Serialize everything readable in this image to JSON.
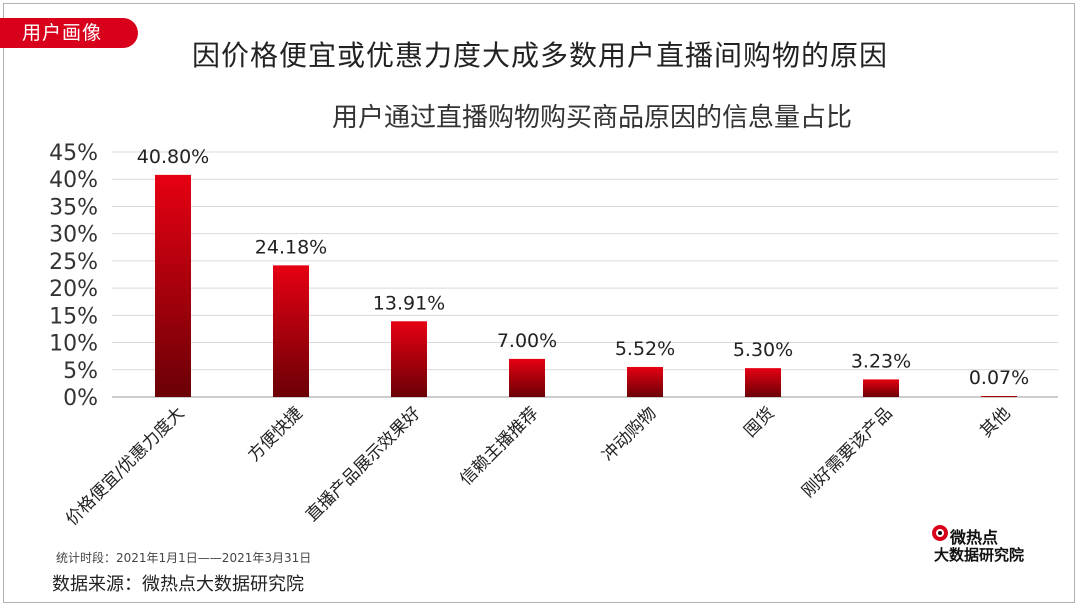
{
  "badge": "用户画像",
  "main_title": "因价格便宜或优惠力度大成多数用户直播间购物的原因",
  "footer": {
    "period": "统计时段：2021年1月1日——2021年3月31日",
    "source": "数据来源：微热点大数据研究院"
  },
  "brand": {
    "line1": "微热点",
    "line2": "大数据研究院",
    "logo_icon": "weibo-eye-icon"
  },
  "colors": {
    "accent": "#d9001b",
    "bar_top": "#e60012",
    "bar_bottom": "#6b0006"
  },
  "chart_data": {
    "type": "bar",
    "title": "用户通过直播购物购买商品原因的信息量占比",
    "xlabel": "",
    "ylabel": "",
    "categories": [
      "价格便宜/优惠力度大",
      "方便快捷",
      "直播产品展示效果好",
      "信赖主播推荐",
      "冲动购物",
      "囤货",
      "刚好需要该产品",
      "其他"
    ],
    "values": [
      40.8,
      24.18,
      13.91,
      7.0,
      5.52,
      5.3,
      3.23,
      0.07
    ],
    "value_labels": [
      "40.80%",
      "24.18%",
      "13.91%",
      "7.00%",
      "5.52%",
      "5.30%",
      "3.23%",
      "0.07%"
    ],
    "ylim": [
      0,
      45
    ],
    "yticks": [
      0,
      5,
      10,
      15,
      20,
      25,
      30,
      35,
      40,
      45
    ],
    "ytick_labels": [
      "0%",
      "5%",
      "10%",
      "15%",
      "20%",
      "25%",
      "30%",
      "35%",
      "40%",
      "45%"
    ],
    "grid": true,
    "legend": "none"
  }
}
